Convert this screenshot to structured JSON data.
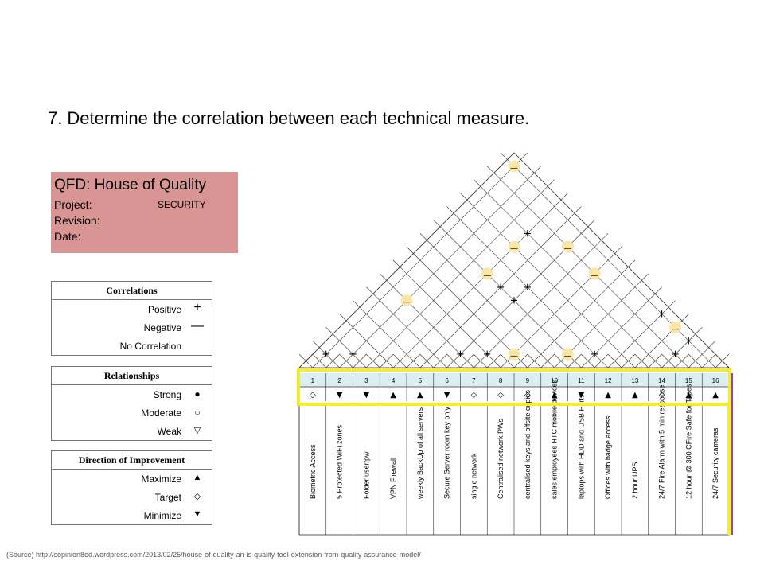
{
  "heading": {
    "number": "7.",
    "text": "Determine the correlation between each technical measure."
  },
  "qfd": {
    "title": "QFD: House of Quality",
    "project_label": "Project:",
    "project_value": "SECURITY",
    "revision_label": "Revision:",
    "date_label": "Date:"
  },
  "correlations": {
    "title": "Correlations",
    "items": [
      {
        "label": "Positive",
        "symbol": "+"
      },
      {
        "label": "Negative",
        "symbol": "—"
      },
      {
        "label": "No Correlation",
        "symbol": ""
      }
    ]
  },
  "relationships": {
    "title": "Relationships",
    "items": [
      {
        "label": "Strong",
        "symbol": "●"
      },
      {
        "label": "Moderate",
        "symbol": "○"
      },
      {
        "label": "Weak",
        "symbol": "▽"
      }
    ]
  },
  "direction": {
    "title": "Direction of Improvement",
    "items": [
      {
        "label": "Maximize",
        "symbol": "▲"
      },
      {
        "label": "Target",
        "symbol": "◇"
      },
      {
        "label": "Minimize",
        "symbol": "▼"
      }
    ]
  },
  "matrix": {
    "highlight_color": "#f5ee2a",
    "negative_bg": "#fbe6a6",
    "column_numbers": [
      "1",
      "2",
      "3",
      "4",
      "5",
      "6",
      "7",
      "8",
      "9",
      "10",
      "11",
      "12",
      "13",
      "14",
      "15",
      "16"
    ],
    "directions": [
      "◇",
      "▼",
      "▼",
      "▲",
      "▲",
      "▼",
      "◇",
      "◇",
      "◇",
      "▲",
      "▼",
      "▲",
      "▲",
      "◇",
      "▲",
      "▲"
    ],
    "measures": [
      "Biometric Access",
      "5 Protected WiFi zones",
      "Folder user/pw",
      "VPN Firewall",
      "weekly BackUp of all servers",
      "Secure Server room key only",
      "single network",
      "Centralised network PWs",
      "centralised keys and offsite copies",
      "sales employees HTC mobile devices",
      "laptops with HDD and USB Ports",
      "Offices with badge access",
      "2 hour UPS",
      "24/7 Fire Alarm with 5 min response",
      "12 hour @ 300 CFire Safe for Tapes",
      "24/7 Security cameras"
    ],
    "correlations": [
      {
        "pair": [
          1,
          2
        ],
        "symbol": "+"
      },
      {
        "pair": [
          2,
          3
        ],
        "symbol": "+"
      },
      {
        "pair": [
          6,
          7
        ],
        "symbol": "+"
      },
      {
        "pair": [
          7,
          8
        ],
        "symbol": "+"
      },
      {
        "pair": [
          8,
          9
        ],
        "symbol": "−"
      },
      {
        "pair": [
          10,
          11
        ],
        "symbol": "−"
      },
      {
        "pair": [
          11,
          12
        ],
        "symbol": "+"
      },
      {
        "pair": [
          14,
          15
        ],
        "symbol": "+"
      },
      {
        "pair": [
          14,
          16
        ],
        "symbol": "+"
      },
      {
        "pair": [
          13,
          16
        ],
        "symbol": "−"
      },
      {
        "pair": [
          12,
          16
        ],
        "symbol": "+"
      },
      {
        "pair": [
          2,
          7
        ],
        "symbol": "−"
      },
      {
        "pair": [
          6,
          11
        ],
        "symbol": "+"
      },
      {
        "pair": [
          6,
          12
        ],
        "symbol": "+"
      },
      {
        "pair": [
          5,
          11
        ],
        "symbol": "+"
      },
      {
        "pair": [
          8,
          15
        ],
        "symbol": "−"
      },
      {
        "pair": [
          4,
          11
        ],
        "symbol": "−"
      },
      {
        "pair": [
          6,
          15
        ],
        "symbol": "−"
      },
      {
        "pair": [
          4,
          13
        ],
        "symbol": "−"
      },
      {
        "pair": [
          4,
          14
        ],
        "symbol": "+"
      },
      {
        "pair": [
          1,
          16
        ],
        "symbol": "−"
      }
    ]
  },
  "source": "(Source) http://sopinion8ed.wordpress.com/2013/02/25/house-of-quality-an-is-quality-tool-extension-from-quality-assurance-model/"
}
